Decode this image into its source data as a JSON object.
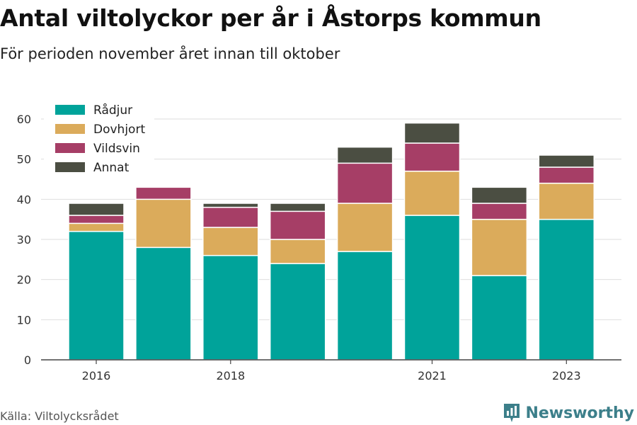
{
  "title": "Antal viltolyckor per år i Åstorps kommun",
  "subtitle": "För perioden november året innan till oktober",
  "source": "Källa: Viltolycksrådet",
  "brand": {
    "name": "Newsworthy",
    "icon": "newsworthy-logo-icon",
    "color": "#3c7f8a"
  },
  "chart_data": {
    "type": "bar",
    "stacked": true,
    "categories": [
      "2016",
      "2017",
      "2018",
      "2019",
      "2020",
      "2021",
      "2022",
      "2023"
    ],
    "x_tick_labels": [
      "2016",
      "",
      "2018",
      "",
      "",
      "2021",
      "",
      "2023"
    ],
    "series": [
      {
        "name": "Rådjur",
        "color": "#00a39a",
        "values": [
          32,
          28,
          26,
          24,
          27,
          36,
          21,
          35
        ]
      },
      {
        "name": "Dovhjort",
        "color": "#dbab5b",
        "values": [
          2,
          12,
          7,
          6,
          12,
          11,
          14,
          9
        ]
      },
      {
        "name": "Vildsvin",
        "color": "#a63e66",
        "values": [
          2,
          3,
          5,
          7,
          10,
          7,
          4,
          4
        ]
      },
      {
        "name": "Annat",
        "color": "#4b4e42",
        "values": [
          3,
          0,
          1,
          2,
          4,
          5,
          4,
          3
        ]
      }
    ],
    "ylim": [
      0,
      60
    ],
    "yticks": [
      0,
      10,
      20,
      30,
      40,
      50,
      60
    ],
    "grid": true,
    "legend": "top-left",
    "xlabel": "",
    "ylabel": ""
  }
}
